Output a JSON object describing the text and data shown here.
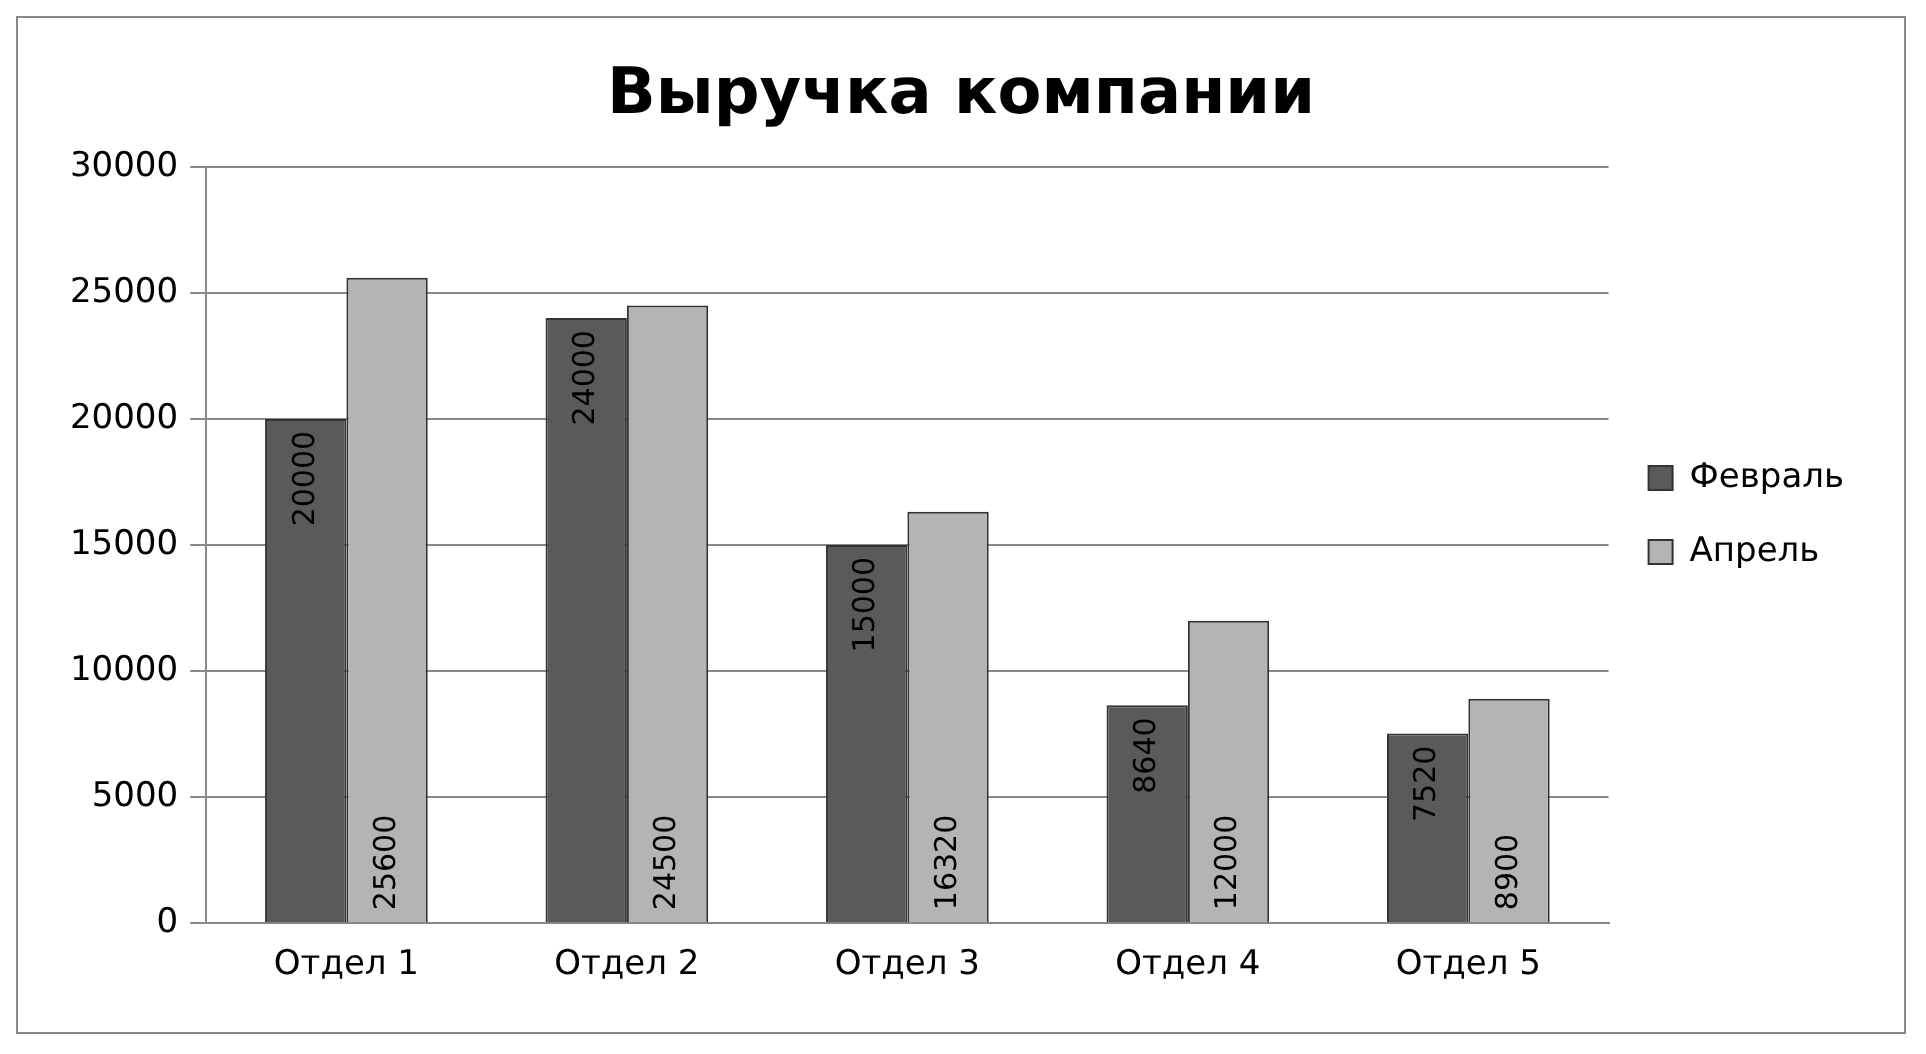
{
  "chart_data": {
    "type": "bar",
    "title": "Выручка компании",
    "categories": [
      "Отдел 1",
      "Отдел 2",
      "Отдел 3",
      "Отдел 4",
      "Отдел 5"
    ],
    "series": [
      {
        "name": "Февраль",
        "color": "#5a5a5a",
        "values": [
          20000,
          24000,
          15000,
          8640,
          7520
        ]
      },
      {
        "name": "Апрель",
        "color": "#b4b4b4",
        "values": [
          25600,
          24500,
          16320,
          12000,
          8900
        ]
      }
    ],
    "ylim": [
      0,
      30000
    ],
    "yticks": [
      0,
      5000,
      10000,
      15000,
      20000,
      25000,
      30000
    ],
    "grid": "y",
    "legend": "right",
    "data_labels": true
  }
}
